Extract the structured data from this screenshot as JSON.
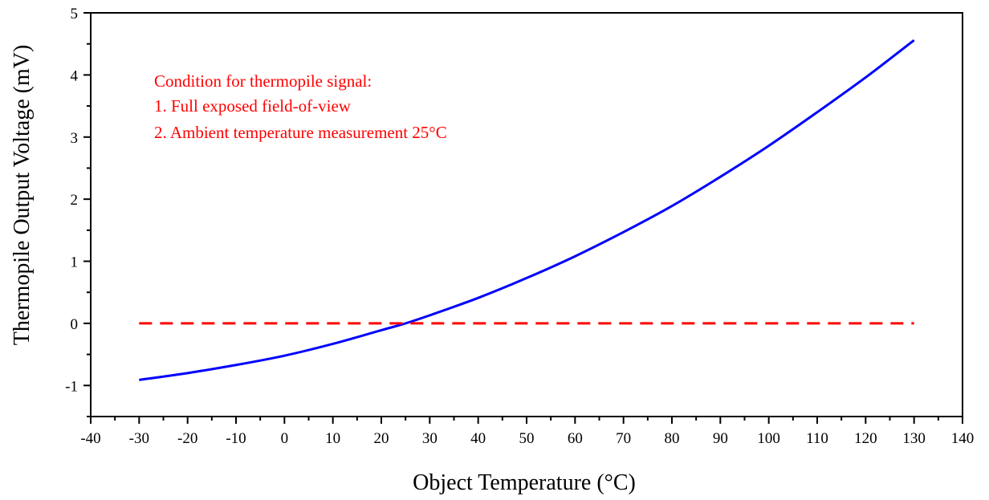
{
  "chart_data": {
    "type": "line",
    "xlabel": "Object Temperature (°C)",
    "ylabel": "Thermopile Output Voltage (mV)",
    "xlim": [
      -40,
      140
    ],
    "ylim": [
      -1.5,
      5
    ],
    "x_ticks": [
      -40,
      -30,
      -20,
      -10,
      0,
      10,
      20,
      30,
      40,
      50,
      60,
      70,
      80,
      90,
      100,
      110,
      120,
      130,
      140
    ],
    "y_ticks": [
      -1,
      0,
      1,
      2,
      3,
      4,
      5
    ],
    "x_tick_labels": [
      "-40",
      "-30",
      "-20",
      "-10",
      "0",
      "10",
      "20",
      "30",
      "40",
      "50",
      "60",
      "70",
      "80",
      "90",
      "100",
      "110",
      "120",
      "130",
      "140"
    ],
    "y_tick_labels": [
      "-1",
      "0",
      "1",
      "2",
      "3",
      "4",
      "5"
    ],
    "grid": false,
    "series": [
      {
        "color": "#0000ff",
        "style": "solid",
        "x": [
          -30,
          -20,
          -10,
          0,
          10,
          20,
          25,
          30,
          40,
          50,
          60,
          70,
          80,
          90,
          100,
          110,
          120,
          130
        ],
        "y": [
          -0.91,
          -0.8,
          -0.67,
          -0.52,
          -0.33,
          -0.11,
          0.0,
          0.13,
          0.41,
          0.73,
          1.08,
          1.47,
          1.89,
          2.36,
          2.86,
          3.4,
          3.96,
          4.56
        ]
      },
      {
        "color": "#ff0000",
        "style": "dashed",
        "x": [
          -30,
          130
        ],
        "y": [
          0,
          0
        ]
      }
    ],
    "annotations": [
      "Condition for thermopile signal:",
      "1. Full exposed field-of-view",
      "2. Ambient temperature measurement 25°C"
    ]
  }
}
